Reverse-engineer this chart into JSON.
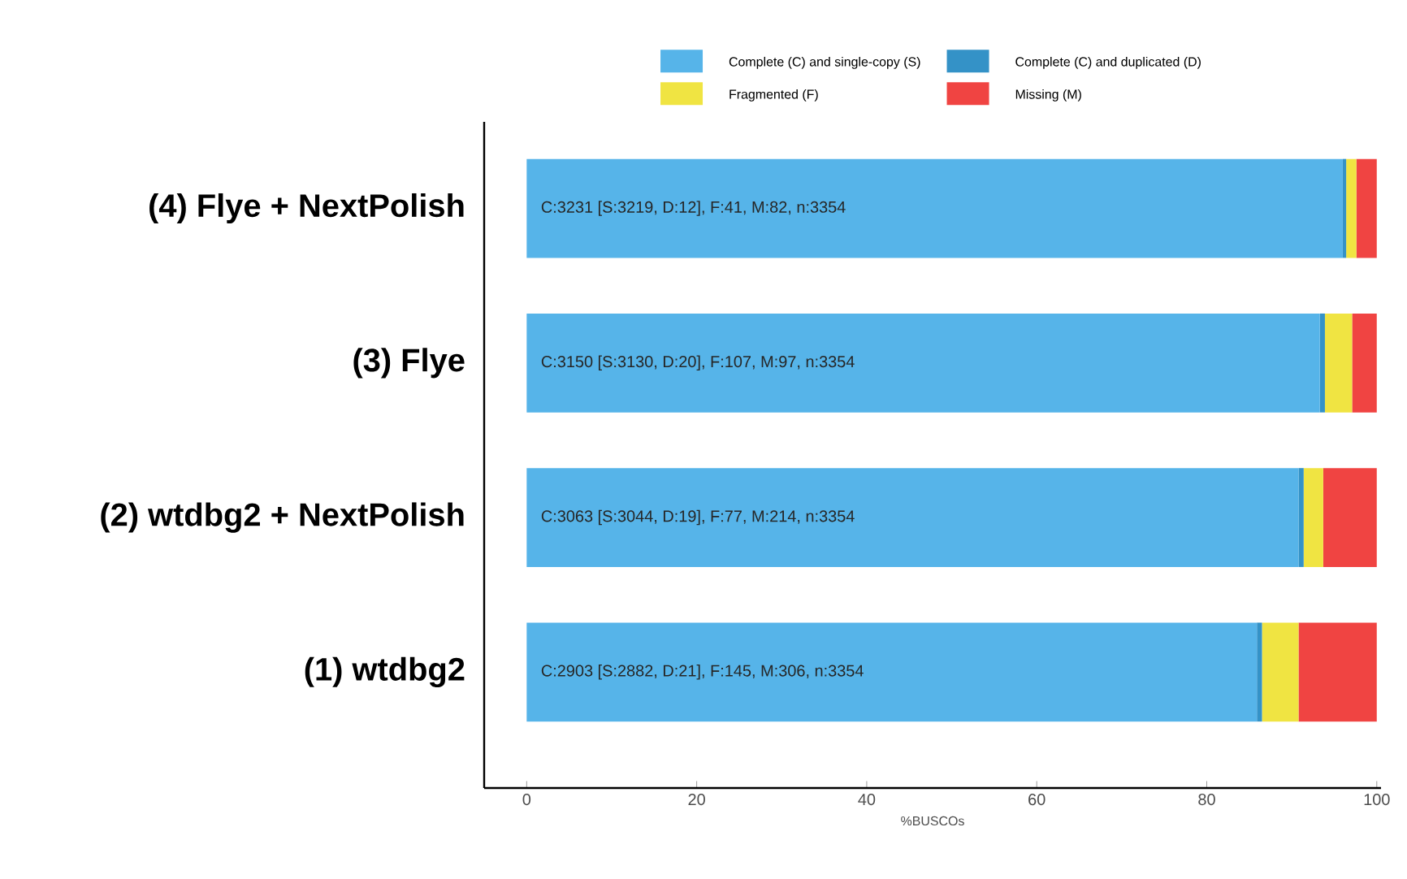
{
  "chart_data": {
    "type": "bar",
    "orientation": "horizontal",
    "stacked": true,
    "categories": [
      "(4) Flye + NextPolish",
      "(3) Flye",
      "(2) wtdbg2 + NextPolish",
      "(1) wtdbg2"
    ],
    "series": [
      {
        "name": "Complete (C) and single-copy (S)",
        "color": "#56b4e9",
        "values": [
          96.0,
          93.3,
          90.8,
          85.9
        ],
        "value_labels": [
          "C:3231 [S:3219, D:12], F:41, M:82, n:3354",
          "C:3150 [S:3130, D:20], F:107, M:97, n:3354",
          "C:3063 [S:3044, D:19], F:77, M:214, n:3354",
          "C:2903 [S:2882, D:21], F:145, M:306, n:3354"
        ]
      },
      {
        "name": "Complete (C) and duplicated (D)",
        "color": "#3492c7",
        "values": [
          0.4,
          0.6,
          0.6,
          0.6
        ]
      },
      {
        "name": "Fragmented (F)",
        "color": "#f0e442",
        "values": [
          1.2,
          3.2,
          2.3,
          4.3
        ]
      },
      {
        "name": "Missing (M)",
        "color": "#f04442",
        "values": [
          2.4,
          2.9,
          6.3,
          9.2
        ]
      }
    ],
    "xlim": [
      -5,
      100.5
    ],
    "xticks": [
      0,
      20,
      40,
      60,
      80,
      100
    ],
    "xlabel": "%BUSCOs",
    "legend": "top"
  }
}
